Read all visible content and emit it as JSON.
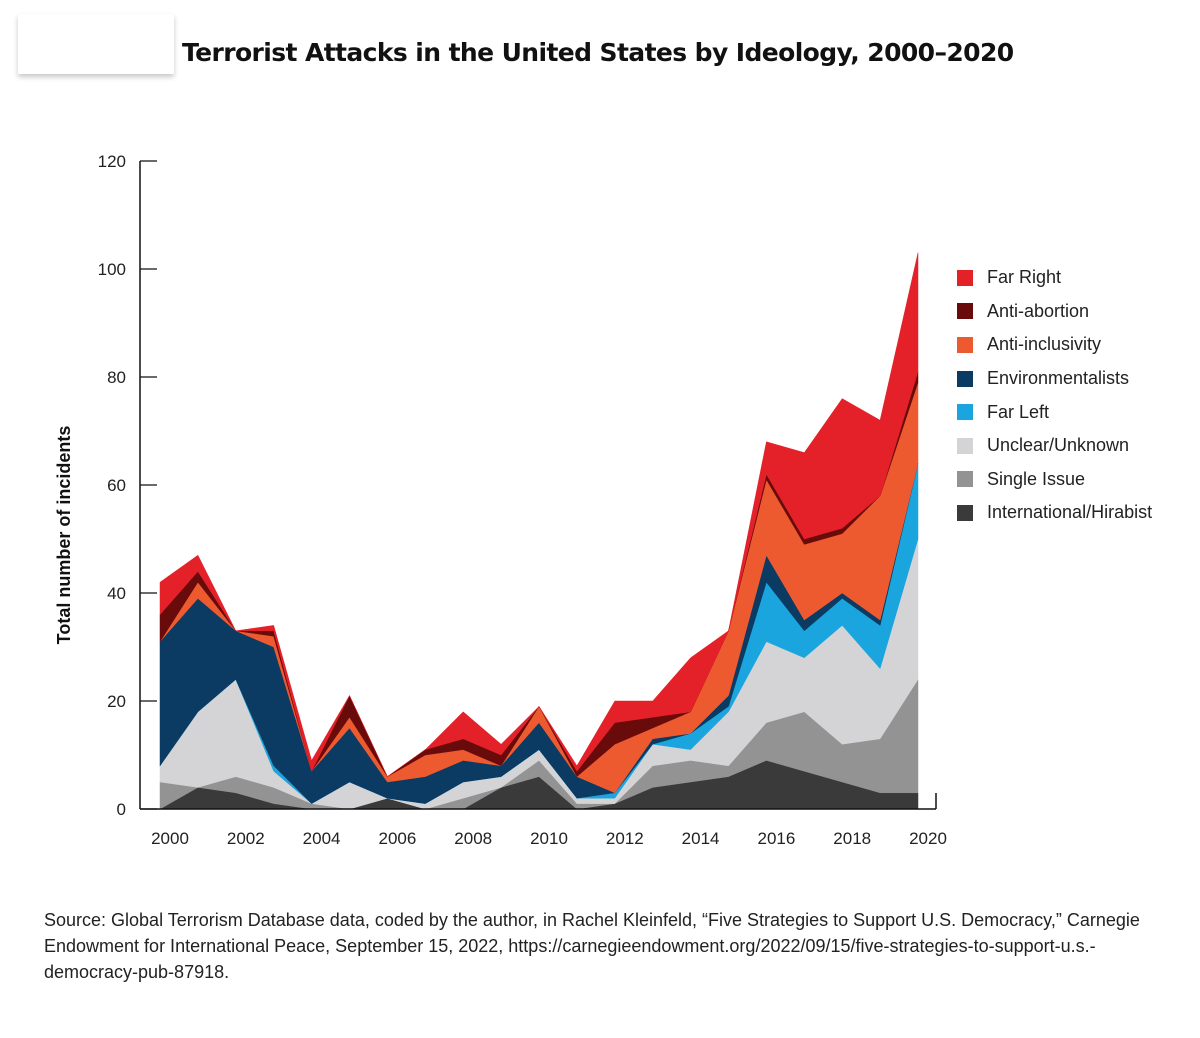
{
  "title": "Terrorist Attacks in the United States by Ideology, 2000–2020",
  "source": "Source: Global Terrorism Database data, coded by the author, in Rachel Kleinfeld, “Five Strategies to Support U.S. Democracy,” Carnegie Endowment for International Peace, September 15, 2022, https://carnegieendowment.org/2022/09/15/five-strategies-to-support-u.s.-democracy-pub-87918.",
  "chart_data": {
    "type": "area",
    "stacked": true,
    "title": "Terrorist Attacks in the United States by Ideology, 2000–2020",
    "xlabel": "",
    "ylabel": "Total number of incidents",
    "xlim": [
      2000,
      2020
    ],
    "ylim": [
      0,
      120
    ],
    "x": [
      2000,
      2001,
      2002,
      2003,
      2004,
      2005,
      2006,
      2007,
      2008,
      2009,
      2010,
      2011,
      2012,
      2013,
      2014,
      2015,
      2016,
      2017,
      2018,
      2019,
      2020
    ],
    "x_ticks": [
      2000,
      2002,
      2004,
      2006,
      2008,
      2010,
      2012,
      2014,
      2016,
      2018,
      2020
    ],
    "y_ticks": [
      0,
      20,
      40,
      60,
      80,
      100,
      120
    ],
    "grid": false,
    "legend_position": "right",
    "series": [
      {
        "name": "International/Hirabist",
        "color": "#3a3a3a",
        "values": [
          0,
          4,
          3,
          1,
          0,
          0,
          2,
          0,
          0,
          4,
          6,
          0,
          1,
          4,
          5,
          6,
          9,
          7,
          5,
          3,
          3
        ]
      },
      {
        "name": "Single Issue",
        "color": "#939393",
        "values": [
          5,
          0,
          3,
          3,
          1,
          0,
          0,
          0,
          2,
          0,
          3,
          1,
          0,
          4,
          4,
          2,
          7,
          11,
          7,
          10,
          21
        ]
      },
      {
        "name": "Unclear/Unknown",
        "color": "#d4d4d6",
        "values": [
          3,
          14,
          18,
          3,
          0,
          5,
          0,
          1,
          3,
          2,
          2,
          1,
          1,
          4,
          2,
          10,
          15,
          10,
          22,
          13,
          26
        ]
      },
      {
        "name": "Far Left",
        "color": "#1aa5de",
        "values": [
          0,
          0,
          0,
          1,
          0,
          0,
          0,
          0,
          0,
          0,
          0,
          0,
          1,
          0,
          3,
          1,
          11,
          5,
          5,
          8,
          14
        ]
      },
      {
        "name": "Environmentalists",
        "color": "#0b3a63",
        "values": [
          23,
          21,
          9,
          22,
          6,
          10,
          3,
          5,
          4,
          2,
          5,
          4,
          0,
          1,
          0,
          2,
          5,
          2,
          1,
          1,
          0
        ]
      },
      {
        "name": "Anti-inclusivity",
        "color": "#ed5a30",
        "values": [
          0,
          3,
          0,
          2,
          0,
          2,
          1,
          4,
          2,
          0,
          3,
          0,
          9,
          2,
          4,
          12,
          14,
          14,
          11,
          23,
          15
        ]
      },
      {
        "name": "Anti-abortion",
        "color": "#690b0b",
        "values": [
          5,
          2,
          0,
          1,
          0,
          4,
          0,
          1,
          2,
          2,
          0,
          1,
          4,
          2,
          0,
          0,
          1,
          1,
          1,
          0,
          2
        ]
      },
      {
        "name": "Far Right",
        "color": "#e42129",
        "values": [
          6,
          3,
          0,
          1,
          2,
          0,
          0,
          0,
          5,
          2,
          0,
          1,
          4,
          3,
          10,
          0,
          6,
          16,
          24,
          14,
          22
        ]
      }
    ]
  }
}
